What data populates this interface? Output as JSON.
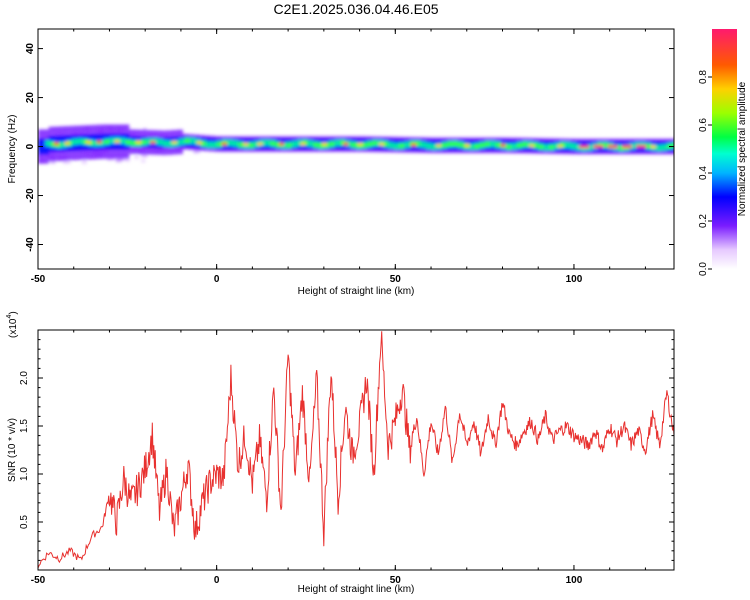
{
  "title": "C2E1.2025.036.04.46.E05",
  "chart_data": [
    {
      "type": "heatmap",
      "xlabel": "Height of straight line (km)",
      "ylabel": "Frequency (Hz)",
      "xlim": [
        -50,
        128
      ],
      "ylim": [
        -50,
        48
      ],
      "xticks": [
        -50,
        0,
        50,
        100
      ],
      "yticks": [
        -40,
        -20,
        0,
        20,
        40
      ],
      "colorbar": {
        "label": "Normalized spectral amplitude",
        "range": [
          0,
          1
        ],
        "ticks": [
          "0.0",
          "0.2",
          "0.4",
          "0.6",
          "0.8"
        ],
        "tick_values": [
          0,
          0.2,
          0.4,
          0.6,
          0.8
        ]
      },
      "ridge": {
        "x": [
          -48,
          -40,
          -32,
          -25,
          -15,
          -10,
          0,
          20,
          40,
          60,
          80,
          100,
          115,
          128
        ],
        "frequency": [
          1,
          1.5,
          2,
          2,
          1.5,
          2,
          1,
          1,
          1,
          0.5,
          0.5,
          0,
          0,
          0
        ]
      }
    },
    {
      "type": "line",
      "xlabel": "Height of straight line (km)",
      "ylabel": "SNR (10 * v/v)",
      "y_multiplier": "(x10",
      "y_multiplier_exp": "4",
      "y_multiplier_close": ")",
      "xlim": [
        -50,
        128
      ],
      "ylim": [
        0,
        2.5
      ],
      "xticks": [
        -50,
        0,
        50,
        100
      ],
      "yticks": [
        0.5,
        1.0,
        1.5,
        2.0
      ],
      "ytick_labels": [
        "0.5",
        "1.0",
        "1.5",
        "2.0"
      ],
      "series": [
        {
          "color": "#e8312f",
          "x": [
            -50,
            -47,
            -44,
            -41,
            -38,
            -35,
            -32,
            -30,
            -28,
            -26,
            -24,
            -22,
            -20,
            -18,
            -16,
            -14,
            -12,
            -10,
            -8,
            -6,
            -4,
            -2,
            0,
            2,
            4,
            6,
            8,
            10,
            12,
            14,
            16,
            18,
            20,
            22,
            24,
            26,
            28,
            30,
            32,
            34,
            36,
            38,
            40,
            42,
            44,
            46,
            48,
            50,
            52,
            54,
            56,
            58,
            60,
            62,
            64,
            66,
            68,
            70,
            72,
            74,
            76,
            78,
            80,
            82,
            84,
            86,
            88,
            90,
            92,
            94,
            96,
            98,
            100,
            102,
            104,
            106,
            108,
            110,
            112,
            114,
            116,
            118,
            120,
            122,
            124,
            126,
            128
          ],
          "y": [
            0.05,
            0.18,
            0.12,
            0.2,
            0.1,
            0.35,
            0.45,
            0.8,
            0.5,
            0.95,
            0.7,
            0.85,
            1.05,
            1.4,
            0.6,
            1.05,
            0.4,
            0.75,
            1.1,
            0.4,
            0.7,
            0.9,
            1.0,
            0.95,
            2.0,
            1.1,
            1.4,
            0.9,
            1.35,
            0.75,
            1.9,
            0.6,
            2.25,
            1.0,
            1.85,
            0.9,
            2.0,
            0.4,
            2.1,
            0.75,
            1.7,
            1.2,
            1.5,
            2.0,
            1.0,
            2.45,
            1.3,
            1.55,
            1.9,
            1.25,
            1.6,
            1.0,
            1.55,
            1.2,
            1.7,
            1.1,
            1.65,
            1.3,
            1.55,
            1.2,
            1.6,
            1.3,
            1.75,
            1.4,
            1.3,
            1.45,
            1.55,
            1.35,
            1.6,
            1.35,
            1.45,
            1.5,
            1.4,
            1.35,
            1.3,
            1.45,
            1.25,
            1.5,
            1.35,
            1.5,
            1.3,
            1.45,
            1.25,
            1.6,
            1.3,
            1.85,
            1.4
          ]
        }
      ]
    }
  ]
}
